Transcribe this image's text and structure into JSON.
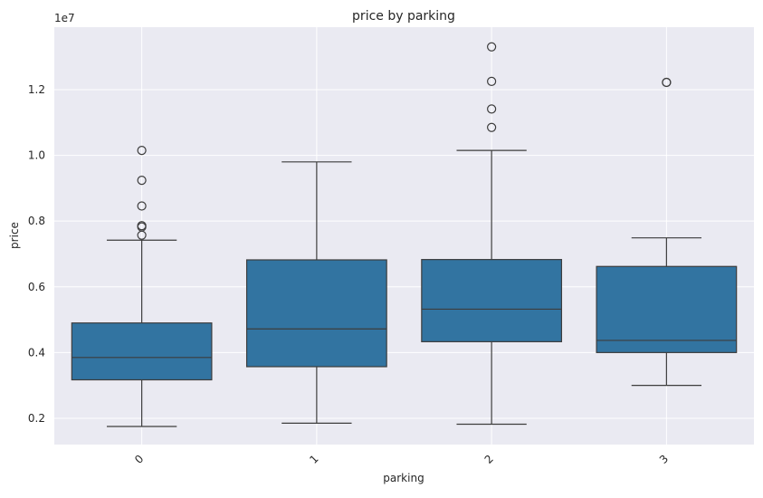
{
  "chart_data": {
    "type": "box",
    "title": "price by parking",
    "xlabel": "parking",
    "ylabel": "price",
    "scale_label": "1e7",
    "categories": [
      "0",
      "1",
      "2",
      "3"
    ],
    "y_ticks": [
      0.2,
      0.4,
      0.6,
      0.8,
      1.0,
      1.2
    ],
    "y_tick_labels": [
      "0.2",
      "0.4",
      "0.6",
      "0.8",
      "1.0",
      "1.2"
    ],
    "ylim": [
      0.12,
      1.39
    ],
    "tick_label_rotation_deg": -45,
    "grid": true,
    "box_color": "#3274a1",
    "background_color": "#eaeaf2",
    "edge_color": "#3d3d3d",
    "boxes": [
      {
        "category": "0",
        "whisker_low": 0.175,
        "q1": 0.317,
        "median": 0.385,
        "q3": 0.49,
        "whisker_high": 0.742,
        "outliers": [
          0.757,
          0.782,
          0.786,
          0.846,
          0.924,
          1.015
        ]
      },
      {
        "category": "1",
        "whisker_low": 0.185,
        "q1": 0.357,
        "median": 0.472,
        "q3": 0.682,
        "whisker_high": 0.98,
        "outliers": []
      },
      {
        "category": "2",
        "whisker_low": 0.182,
        "q1": 0.433,
        "median": 0.532,
        "q3": 0.683,
        "whisker_high": 1.015,
        "outliers": [
          1.085,
          1.141,
          1.225,
          1.33
        ]
      },
      {
        "category": "3",
        "whisker_low": 0.3,
        "q1": 0.4,
        "median": 0.437,
        "q3": 0.662,
        "whisker_high": 0.749,
        "outliers": [
          1.222,
          1.222
        ]
      }
    ]
  }
}
